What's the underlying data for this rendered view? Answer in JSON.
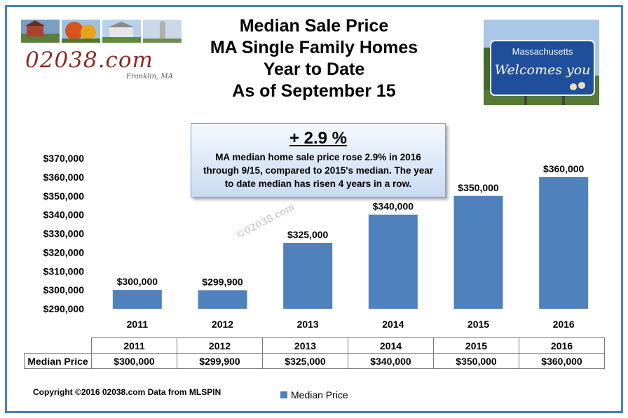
{
  "title_lines": [
    "Median Sale Price",
    "MA Single Family Homes",
    "Year to Date",
    "As of September 15"
  ],
  "logo": {
    "site": "02038.com",
    "town": "Franklin, MA"
  },
  "sign": {
    "line1": "Massachusetts",
    "line2": "Welcomes you"
  },
  "callout": {
    "headline": "+ 2.9 %",
    "body": "MA median home sale price rose 2.9% in 2016 through 9/15, compared to 2015's median. The year to date median has risen 4 years in a row."
  },
  "watermark": "©02038.com",
  "footer": {
    "copyright": "Copyright ©2016 02038.com  Data from MLSPIN"
  },
  "colors": {
    "bar": "#4f81bd",
    "frame": "#4a7fc0"
  },
  "chart_data": {
    "type": "bar",
    "categories": [
      "2011",
      "2012",
      "2013",
      "2014",
      "2015",
      "2016"
    ],
    "series": [
      {
        "name": "Median Price",
        "values": [
          300000,
          299900,
          325000,
          340000,
          350000,
          360000
        ]
      }
    ],
    "data_labels": [
      "$300,000",
      "$299,900",
      "$325,000",
      "$340,000",
      "$350,000",
      "$360,000"
    ],
    "y_ticks": [
      "$290,000",
      "$300,000",
      "$310,000",
      "$320,000",
      "$330,000",
      "$340,000",
      "$350,000",
      "$360,000",
      "$370,000"
    ],
    "ylim": [
      290000,
      370000
    ],
    "grid": false,
    "legend": "bottom",
    "data_table": {
      "row_label": "Median Price",
      "cells": [
        "$300,000",
        "$299,900",
        "$325,000",
        "$340,000",
        "$350,000",
        "$360,000"
      ]
    }
  }
}
